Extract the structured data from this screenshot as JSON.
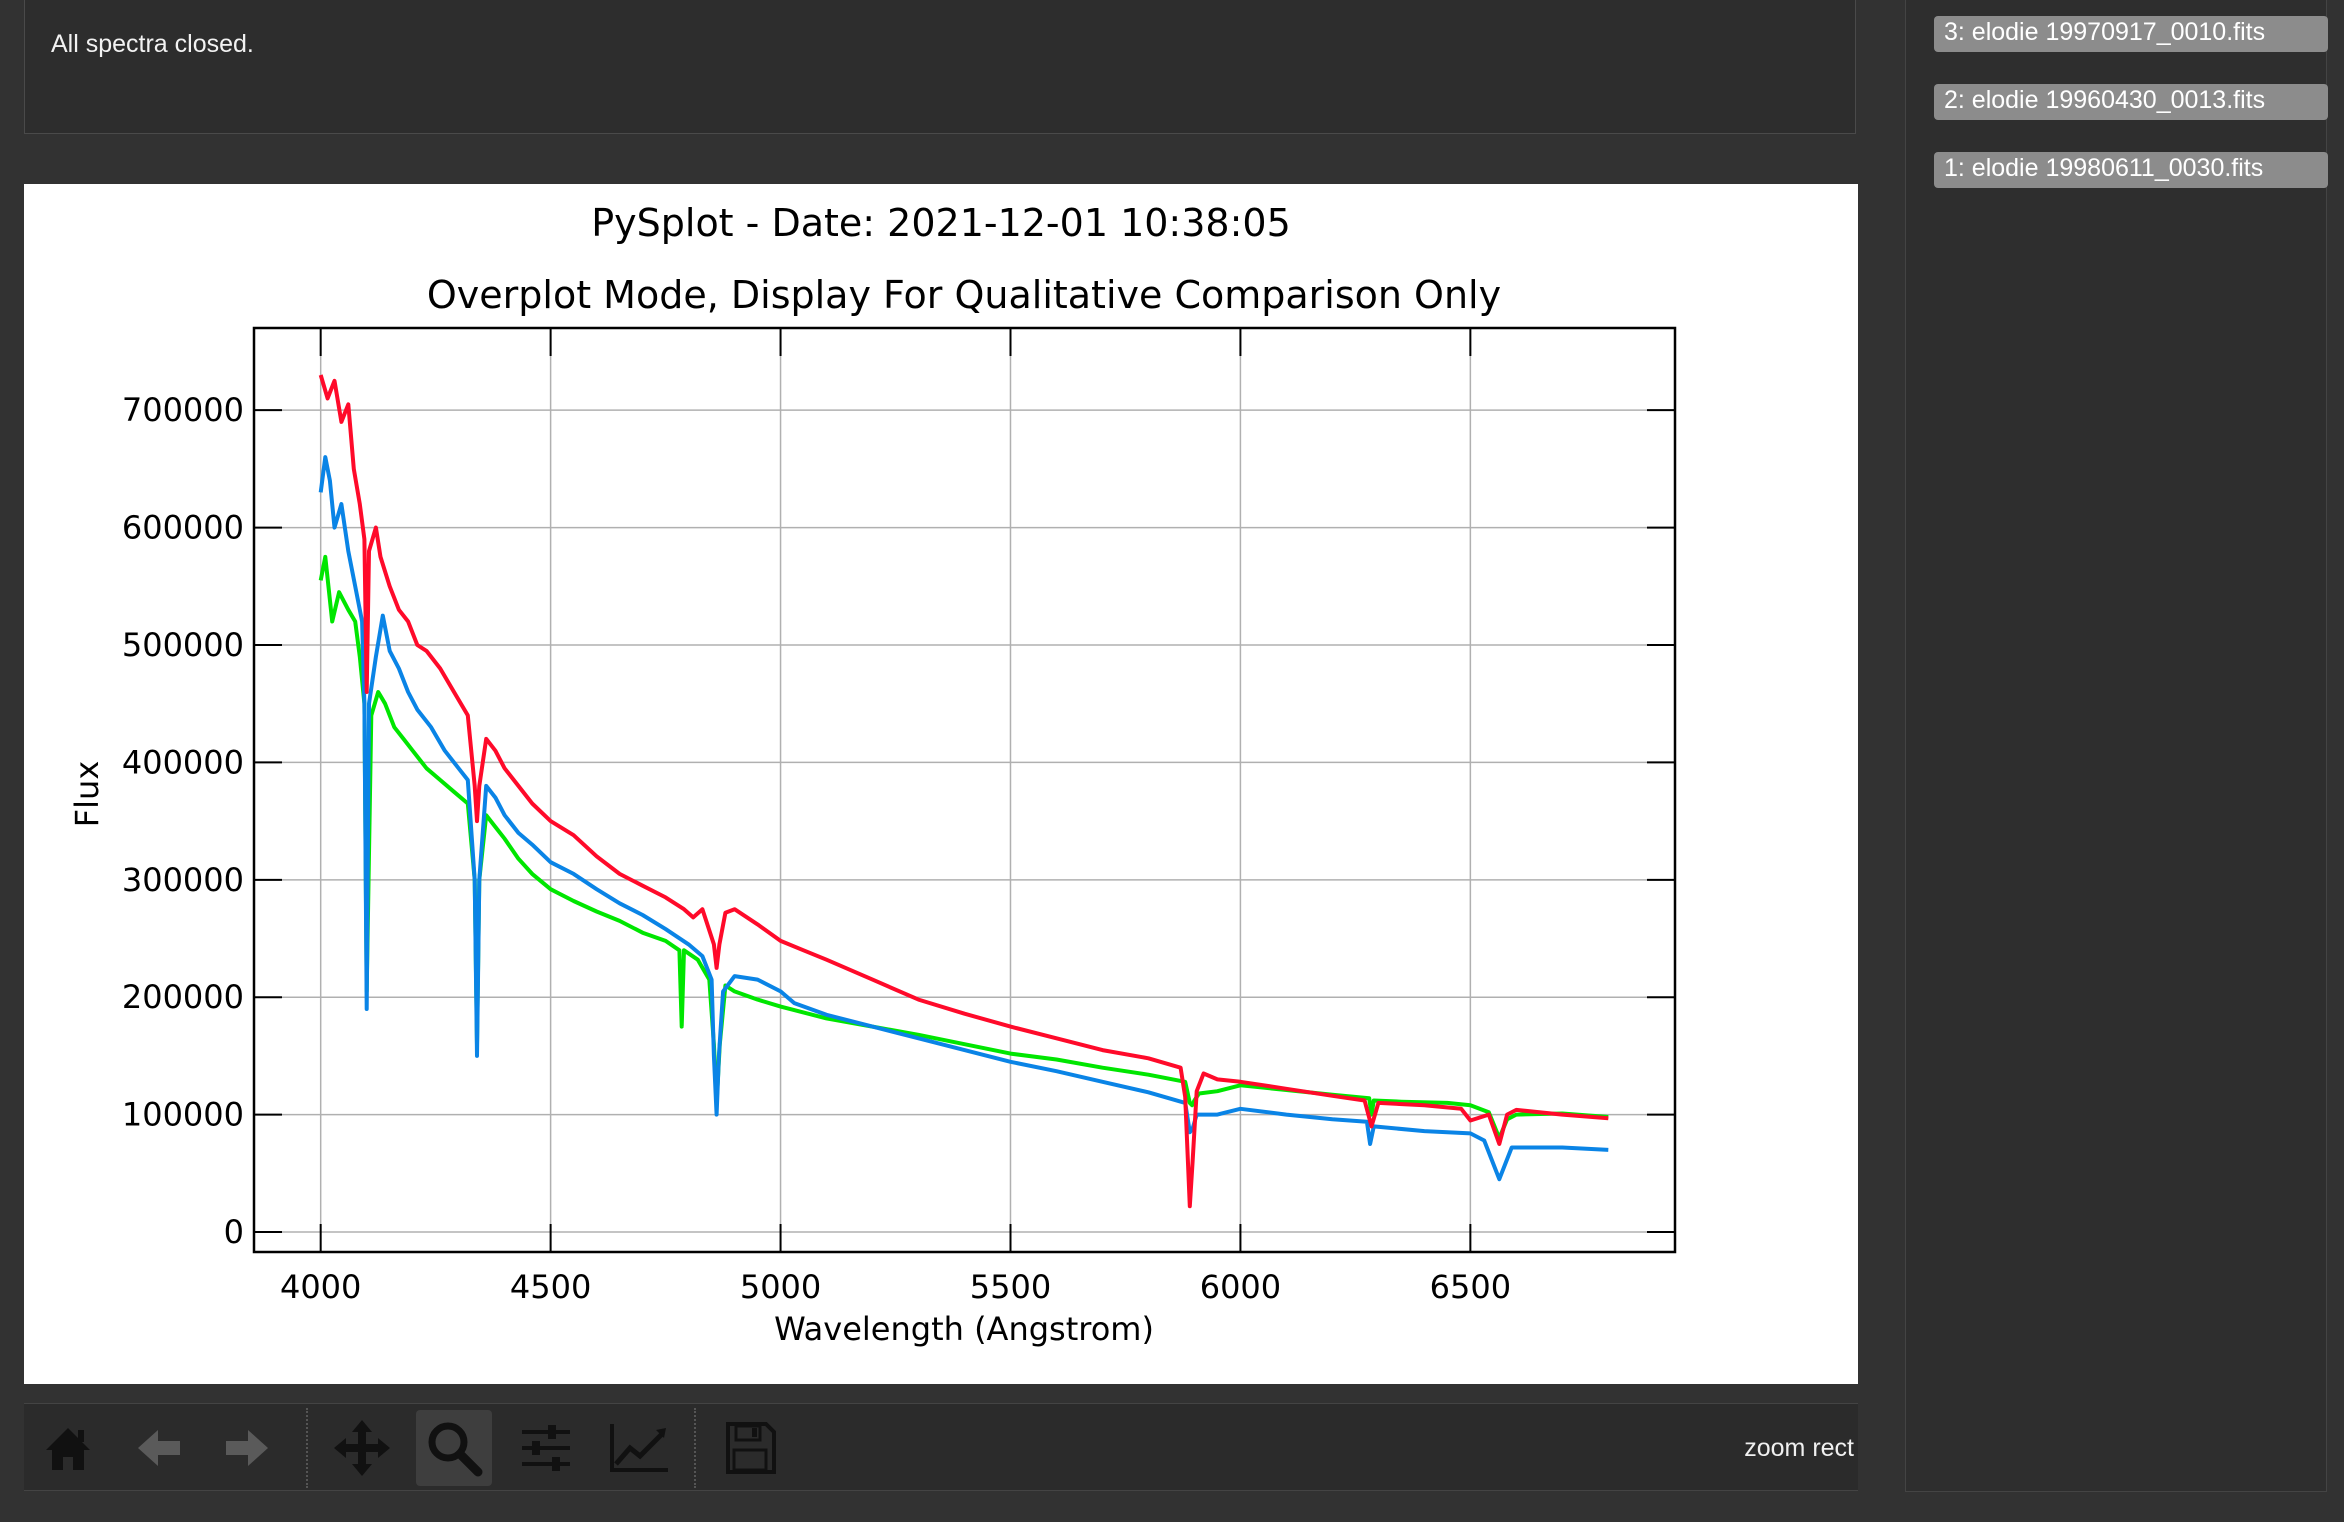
{
  "console": {
    "message": "All spectra closed."
  },
  "spectra_list": [
    "3: elodie 19970917_0010.fits",
    "2: elodie 19960430_0013.fits",
    "1: elodie 19980611_0030.fits"
  ],
  "toolbar": {
    "buttons": [
      {
        "name": "home-icon"
      },
      {
        "name": "back-arrow-icon"
      },
      {
        "name": "forward-arrow-icon"
      },
      {
        "name": "pan-icon"
      },
      {
        "name": "zoom-icon",
        "active": true
      },
      {
        "name": "subplots-config-icon"
      },
      {
        "name": "edit-axes-icon"
      },
      {
        "name": "save-icon"
      }
    ],
    "status": "zoom rect"
  },
  "chart_data": {
    "type": "line",
    "title": "PySplot - Date: 2021-12-01 10:38:05",
    "subtitle": "Overplot Mode, Display For Qualitative Comparison Only",
    "xlabel": "Wavelength (Angstrom)",
    "ylabel": "Flux",
    "xlim": [
      3855,
      6945
    ],
    "ylim": [
      -17000,
      770000
    ],
    "xticks": [
      4000,
      4500,
      5000,
      5500,
      6000,
      6500
    ],
    "yticks": [
      0,
      100000,
      200000,
      300000,
      400000,
      500000,
      600000,
      700000
    ],
    "grid": true,
    "series": [
      {
        "color": "#00e600",
        "points": [
          [
            4000,
            555000
          ],
          [
            4010,
            575000
          ],
          [
            4025,
            520000
          ],
          [
            4040,
            545000
          ],
          [
            4060,
            530000
          ],
          [
            4075,
            520000
          ],
          [
            4085,
            490000
          ],
          [
            4095,
            450000
          ],
          [
            4100,
            205000
          ],
          [
            4110,
            440000
          ],
          [
            4125,
            460000
          ],
          [
            4140,
            450000
          ],
          [
            4160,
            430000
          ],
          [
            4180,
            420000
          ],
          [
            4200,
            410000
          ],
          [
            4230,
            395000
          ],
          [
            4260,
            385000
          ],
          [
            4290,
            375000
          ],
          [
            4320,
            365000
          ],
          [
            4335,
            300000
          ],
          [
            4340,
            160000
          ],
          [
            4345,
            300000
          ],
          [
            4360,
            355000
          ],
          [
            4380,
            345000
          ],
          [
            4400,
            335000
          ],
          [
            4430,
            318000
          ],
          [
            4460,
            305000
          ],
          [
            4500,
            292000
          ],
          [
            4550,
            282000
          ],
          [
            4600,
            273000
          ],
          [
            4650,
            265000
          ],
          [
            4700,
            255000
          ],
          [
            4750,
            248000
          ],
          [
            4780,
            240000
          ],
          [
            4785,
            175000
          ],
          [
            4790,
            240000
          ],
          [
            4820,
            232000
          ],
          [
            4845,
            215000
          ],
          [
            4855,
            160000
          ],
          [
            4861,
            110000
          ],
          [
            4868,
            160000
          ],
          [
            4880,
            210000
          ],
          [
            4900,
            205000
          ],
          [
            4950,
            198000
          ],
          [
            5000,
            192000
          ],
          [
            5100,
            182000
          ],
          [
            5200,
            175000
          ],
          [
            5300,
            168000
          ],
          [
            5400,
            160000
          ],
          [
            5500,
            152000
          ],
          [
            5600,
            147000
          ],
          [
            5700,
            140000
          ],
          [
            5800,
            134000
          ],
          [
            5880,
            128000
          ],
          [
            5890,
            110000
          ],
          [
            5895,
            108000
          ],
          [
            5900,
            112000
          ],
          [
            5910,
            118000
          ],
          [
            5950,
            120000
          ],
          [
            6000,
            125000
          ],
          [
            6100,
            121000
          ],
          [
            6200,
            117000
          ],
          [
            6280,
            114000
          ],
          [
            6285,
            100000
          ],
          [
            6290,
            112000
          ],
          [
            6350,
            111000
          ],
          [
            6450,
            110000
          ],
          [
            6500,
            108000
          ],
          [
            6540,
            102000
          ],
          [
            6563,
            80000
          ],
          [
            6580,
            96000
          ],
          [
            6600,
            100000
          ],
          [
            6700,
            101000
          ],
          [
            6800,
            98000
          ]
        ]
      },
      {
        "color": "#0a84e6",
        "points": [
          [
            4000,
            630000
          ],
          [
            4010,
            660000
          ],
          [
            4020,
            640000
          ],
          [
            4030,
            600000
          ],
          [
            4045,
            620000
          ],
          [
            4060,
            580000
          ],
          [
            4075,
            550000
          ],
          [
            4090,
            520000
          ],
          [
            4095,
            450000
          ],
          [
            4100,
            190000
          ],
          [
            4105,
            450000
          ],
          [
            4120,
            490000
          ],
          [
            4135,
            525000
          ],
          [
            4150,
            495000
          ],
          [
            4170,
            480000
          ],
          [
            4190,
            460000
          ],
          [
            4210,
            445000
          ],
          [
            4240,
            430000
          ],
          [
            4270,
            410000
          ],
          [
            4300,
            395000
          ],
          [
            4320,
            385000
          ],
          [
            4335,
            300000
          ],
          [
            4340,
            150000
          ],
          [
            4345,
            300000
          ],
          [
            4360,
            380000
          ],
          [
            4380,
            370000
          ],
          [
            4400,
            355000
          ],
          [
            4430,
            340000
          ],
          [
            4460,
            330000
          ],
          [
            4500,
            315000
          ],
          [
            4550,
            305000
          ],
          [
            4600,
            292000
          ],
          [
            4650,
            280000
          ],
          [
            4700,
            270000
          ],
          [
            4750,
            258000
          ],
          [
            4800,
            245000
          ],
          [
            4830,
            235000
          ],
          [
            4850,
            215000
          ],
          [
            4855,
            150000
          ],
          [
            4861,
            100000
          ],
          [
            4866,
            150000
          ],
          [
            4875,
            205000
          ],
          [
            4900,
            218000
          ],
          [
            4950,
            215000
          ],
          [
            5000,
            205000
          ],
          [
            5030,
            195000
          ],
          [
            5100,
            185000
          ],
          [
            5200,
            175000
          ],
          [
            5300,
            165000
          ],
          [
            5400,
            155000
          ],
          [
            5500,
            145000
          ],
          [
            5600,
            137000
          ],
          [
            5700,
            128000
          ],
          [
            5800,
            119000
          ],
          [
            5880,
            110000
          ],
          [
            5890,
            85000
          ],
          [
            5896,
            88000
          ],
          [
            5905,
            100000
          ],
          [
            5950,
            100000
          ],
          [
            6000,
            105000
          ],
          [
            6100,
            100000
          ],
          [
            6200,
            96000
          ],
          [
            6275,
            94000
          ],
          [
            6282,
            75000
          ],
          [
            6290,
            90000
          ],
          [
            6400,
            86000
          ],
          [
            6500,
            84000
          ],
          [
            6530,
            78000
          ],
          [
            6563,
            45000
          ],
          [
            6590,
            72000
          ],
          [
            6700,
            72000
          ],
          [
            6800,
            70000
          ]
        ]
      },
      {
        "color": "#ff0a2a",
        "points": [
          [
            4000,
            730000
          ],
          [
            4015,
            710000
          ],
          [
            4030,
            725000
          ],
          [
            4045,
            690000
          ],
          [
            4060,
            705000
          ],
          [
            4072,
            650000
          ],
          [
            4085,
            620000
          ],
          [
            4095,
            590000
          ],
          [
            4100,
            460000
          ],
          [
            4105,
            580000
          ],
          [
            4120,
            600000
          ],
          [
            4130,
            575000
          ],
          [
            4150,
            550000
          ],
          [
            4170,
            530000
          ],
          [
            4190,
            520000
          ],
          [
            4210,
            500000
          ],
          [
            4230,
            495000
          ],
          [
            4260,
            480000
          ],
          [
            4290,
            460000
          ],
          [
            4320,
            440000
          ],
          [
            4335,
            380000
          ],
          [
            4340,
            350000
          ],
          [
            4345,
            380000
          ],
          [
            4360,
            420000
          ],
          [
            4380,
            410000
          ],
          [
            4400,
            395000
          ],
          [
            4430,
            380000
          ],
          [
            4460,
            365000
          ],
          [
            4500,
            350000
          ],
          [
            4550,
            338000
          ],
          [
            4600,
            320000
          ],
          [
            4650,
            305000
          ],
          [
            4700,
            295000
          ],
          [
            4750,
            285000
          ],
          [
            4790,
            275000
          ],
          [
            4810,
            268000
          ],
          [
            4830,
            275000
          ],
          [
            4855,
            245000
          ],
          [
            4861,
            225000
          ],
          [
            4867,
            245000
          ],
          [
            4880,
            272000
          ],
          [
            4900,
            275000
          ],
          [
            4950,
            262000
          ],
          [
            5000,
            248000
          ],
          [
            5050,
            240000
          ],
          [
            5100,
            232000
          ],
          [
            5200,
            215000
          ],
          [
            5300,
            198000
          ],
          [
            5400,
            186000
          ],
          [
            5500,
            175000
          ],
          [
            5600,
            165000
          ],
          [
            5700,
            155000
          ],
          [
            5800,
            148000
          ],
          [
            5870,
            140000
          ],
          [
            5880,
            115000
          ],
          [
            5890,
            22000
          ],
          [
            5896,
            60000
          ],
          [
            5905,
            120000
          ],
          [
            5920,
            135000
          ],
          [
            5950,
            130000
          ],
          [
            6000,
            128000
          ],
          [
            6100,
            122000
          ],
          [
            6200,
            116000
          ],
          [
            6270,
            112000
          ],
          [
            6285,
            90000
          ],
          [
            6300,
            110000
          ],
          [
            6400,
            108000
          ],
          [
            6480,
            105000
          ],
          [
            6500,
            95000
          ],
          [
            6540,
            100000
          ],
          [
            6563,
            75000
          ],
          [
            6580,
            100000
          ],
          [
            6600,
            104000
          ],
          [
            6700,
            100000
          ],
          [
            6800,
            97000
          ]
        ]
      }
    ]
  }
}
